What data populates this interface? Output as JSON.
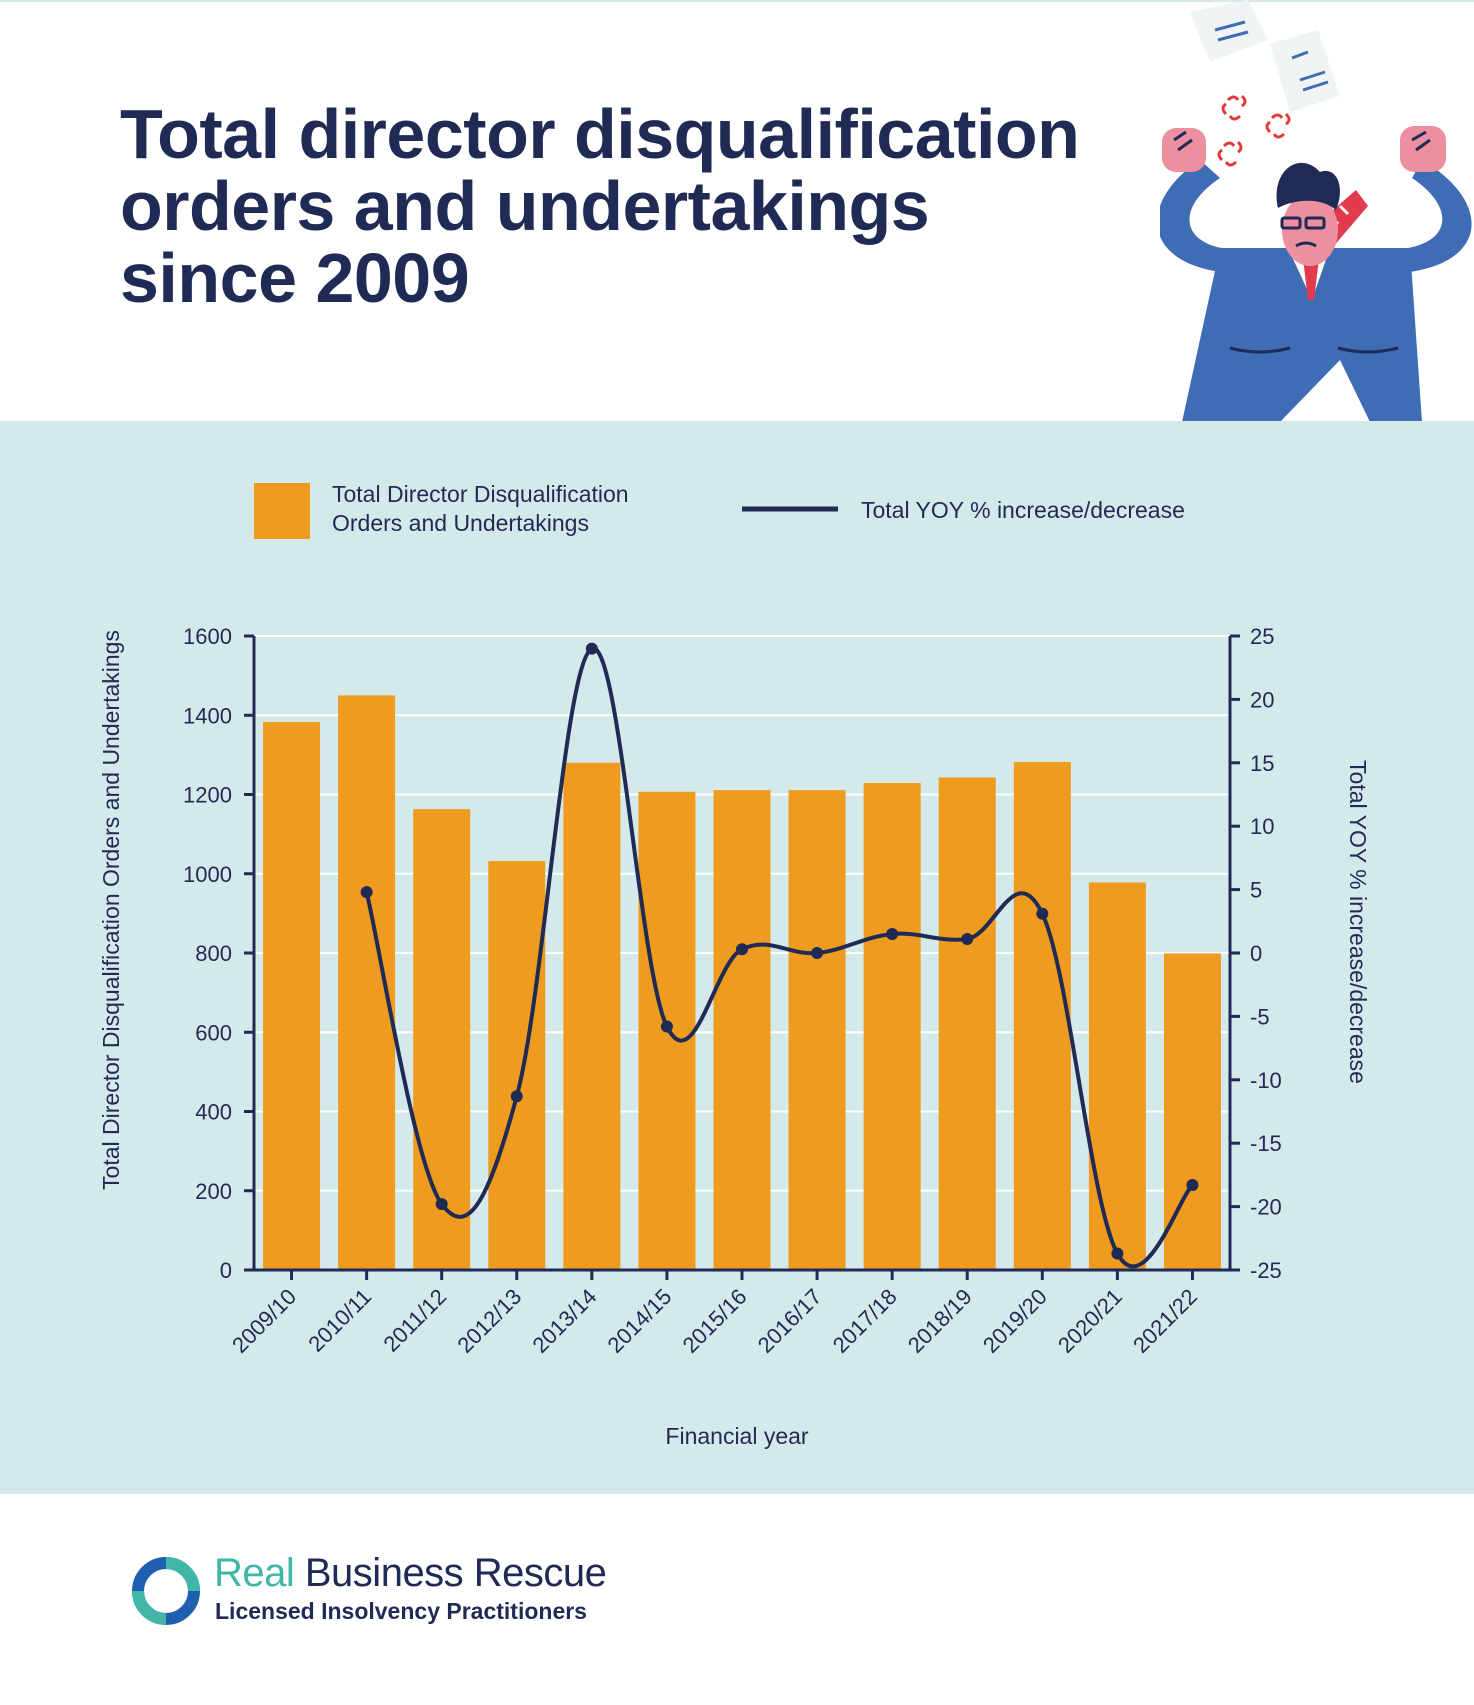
{
  "header": {
    "title_lines": [
      "Total director disqualification",
      "orders and undertakings",
      "since 2009"
    ]
  },
  "legend": {
    "bars_label_lines": [
      "Total Director Disqualification",
      "Orders and Undertakings"
    ],
    "line_label": "Total YOY % increase/decrease"
  },
  "footer": {
    "brand_part1": "Real",
    "brand_part2": " Business Rescue",
    "tagline": "Licensed Insolvency Practitioners"
  },
  "colors": {
    "bar": "#ef9b1f",
    "line": "#1f2a55",
    "panel": "#d4eaea",
    "grid": "#ffffff",
    "text": "#1f2a55"
  },
  "chart_data": {
    "type": "bar",
    "categories": [
      "2009/10",
      "2010/11",
      "2011/12",
      "2012/13",
      "2013/14",
      "2014/15",
      "2015/16",
      "2016/17",
      "2017/18",
      "2018/19",
      "2019/20",
      "2020/21",
      "2021/22"
    ],
    "series": [
      {
        "name": "Total Director Disqualification Orders and Undertakings",
        "type": "bar",
        "axis": "left",
        "values": [
          1383,
          1450,
          1163,
          1032,
          1280,
          1207,
          1211,
          1211,
          1229,
          1243,
          1282,
          978,
          799
        ]
      },
      {
        "name": "Total YOY % increase/decrease",
        "type": "line",
        "axis": "right",
        "values": [
          null,
          4.8,
          -19.8,
          -11.3,
          24.0,
          -5.8,
          0.3,
          0.0,
          1.5,
          1.1,
          3.1,
          -23.7,
          -18.3
        ]
      }
    ],
    "xlabel": "Financial year",
    "ylabel": "Total Director Disqualification Orders and Undertakings",
    "y2label": "Total YOY % increase/decrease",
    "ylim": [
      0,
      1600
    ],
    "y2lim": [
      -25,
      25
    ],
    "yticks": [
      0,
      200,
      400,
      600,
      800,
      1000,
      1200,
      1400,
      1600
    ],
    "y2ticks": [
      -25,
      -20,
      -15,
      -10,
      -5,
      0,
      5,
      10,
      15,
      20,
      25
    ],
    "grid": true,
    "legend_position": "top"
  }
}
